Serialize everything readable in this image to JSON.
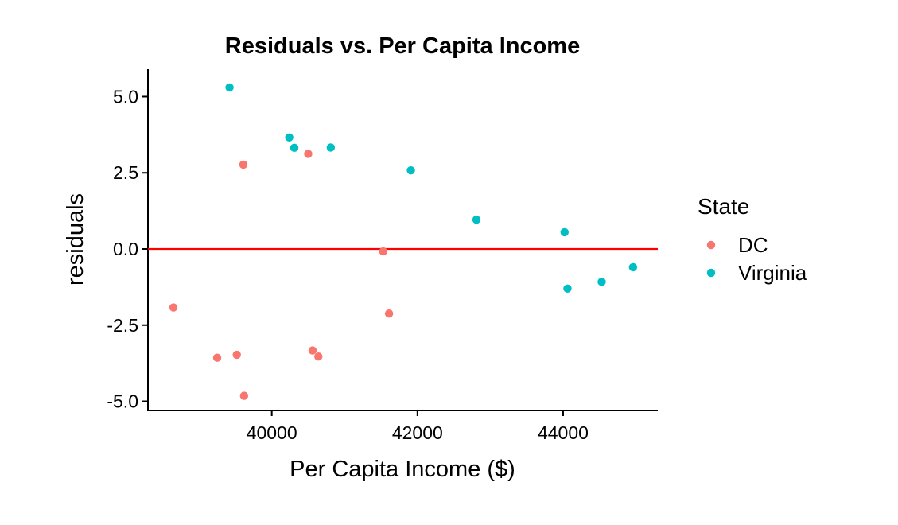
{
  "chart_data": {
    "type": "scatter",
    "title": "Residuals vs. Per Capita Income",
    "xlabel": "Per Capita Income ($)",
    "ylabel": "residuals",
    "xlim": [
      38300,
      45300
    ],
    "ylim": [
      -5.3,
      5.9
    ],
    "x_ticks": [
      {
        "value": 40000,
        "label": "40000"
      },
      {
        "value": 42000,
        "label": "42000"
      },
      {
        "value": 44000,
        "label": "44000"
      }
    ],
    "y_ticks": [
      {
        "value": 5,
        "label": "5.0"
      },
      {
        "value": 2.5,
        "label": "2.5"
      },
      {
        "value": 0,
        "label": "0.0"
      },
      {
        "value": -2.5,
        "label": "-2.5"
      },
      {
        "value": -5,
        "label": "-5.0"
      }
    ],
    "reference_line": {
      "y": 0,
      "color": "#ff0000"
    },
    "grid": false,
    "legend": {
      "title": "State",
      "position": "right"
    },
    "series": [
      {
        "name": "DC",
        "color": "#F8766D",
        "points": [
          {
            "x": 38650,
            "y": -1.92
          },
          {
            "x": 39250,
            "y": -3.57
          },
          {
            "x": 39520,
            "y": -3.47
          },
          {
            "x": 39610,
            "y": 2.77
          },
          {
            "x": 39620,
            "y": -4.82
          },
          {
            "x": 40500,
            "y": 3.12
          },
          {
            "x": 40560,
            "y": -3.33
          },
          {
            "x": 40640,
            "y": -3.53
          },
          {
            "x": 41530,
            "y": -0.08
          },
          {
            "x": 41610,
            "y": -2.12
          }
        ]
      },
      {
        "name": "Virginia",
        "color": "#00BFC4",
        "points": [
          {
            "x": 39420,
            "y": 5.3
          },
          {
            "x": 40240,
            "y": 3.66
          },
          {
            "x": 40310,
            "y": 3.32
          },
          {
            "x": 40810,
            "y": 3.33
          },
          {
            "x": 41910,
            "y": 2.58
          },
          {
            "x": 42810,
            "y": 0.96
          },
          {
            "x": 44020,
            "y": 0.55
          },
          {
            "x": 44060,
            "y": -1.3
          },
          {
            "x": 44530,
            "y": -1.08
          },
          {
            "x": 44960,
            "y": -0.6
          }
        ]
      }
    ]
  }
}
